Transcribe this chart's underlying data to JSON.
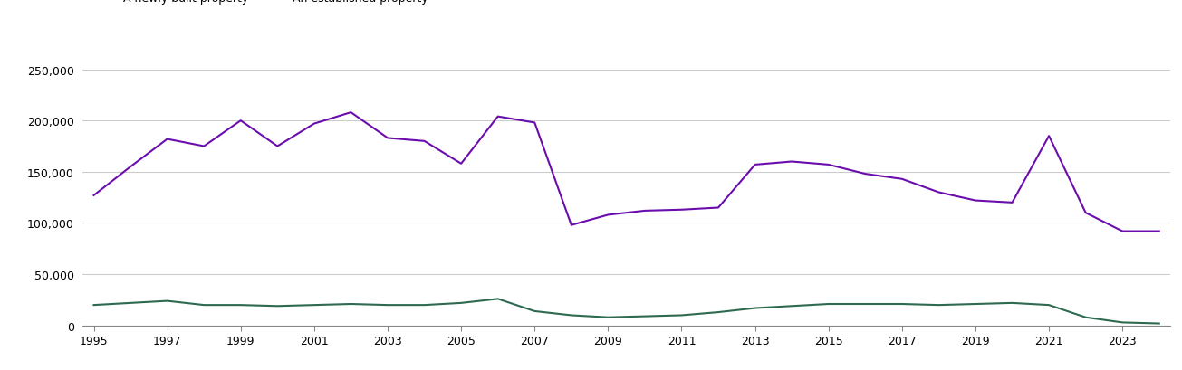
{
  "years": [
    1995,
    1996,
    1997,
    1998,
    1999,
    2000,
    2001,
    2002,
    2003,
    2004,
    2005,
    2006,
    2007,
    2008,
    2009,
    2010,
    2011,
    2012,
    2013,
    2014,
    2015,
    2016,
    2017,
    2018,
    2019,
    2020,
    2021,
    2022,
    2023,
    2024
  ],
  "newly_built": [
    20000,
    22000,
    24000,
    20000,
    20000,
    19000,
    20000,
    21000,
    20000,
    20000,
    22000,
    26000,
    14000,
    10000,
    8000,
    9000,
    10000,
    13000,
    17000,
    19000,
    21000,
    21000,
    21000,
    20000,
    21000,
    22000,
    20000,
    8000,
    3000,
    2000
  ],
  "established": [
    127000,
    155000,
    182000,
    175000,
    200000,
    175000,
    197000,
    208000,
    183000,
    180000,
    158000,
    204000,
    198000,
    98000,
    108000,
    112000,
    113000,
    115000,
    157000,
    160000,
    157000,
    148000,
    143000,
    130000,
    122000,
    120000,
    185000,
    110000,
    92000,
    92000
  ],
  "newly_built_color": "#2d6a4f",
  "established_color": "#6a0dad",
  "ylim": [
    0,
    275000
  ],
  "yticks": [
    0,
    50000,
    100000,
    150000,
    200000,
    250000
  ],
  "xtick_years": [
    1995,
    1997,
    1999,
    2001,
    2003,
    2005,
    2007,
    2009,
    2011,
    2013,
    2015,
    2017,
    2019,
    2021,
    2023
  ],
  "background_color": "#ffffff",
  "grid_color": "#cccccc",
  "line_width": 1.5
}
